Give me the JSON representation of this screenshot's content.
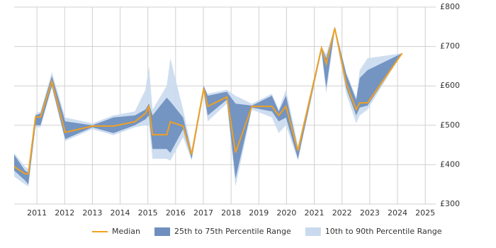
{
  "chart_data": {
    "type": "band-line",
    "x": [
      2010.18,
      2010.57,
      2010.69,
      2010.95,
      2011.13,
      2011.54,
      2012.02,
      2013.0,
      2013.76,
      2014.53,
      2014.91,
      2015.04,
      2015.17,
      2015.68,
      2015.81,
      2016.27,
      2016.58,
      2017.01,
      2017.16,
      2017.85,
      2018.16,
      2018.75,
      2019.47,
      2019.72,
      2019.98,
      2020.41,
      2021.26,
      2021.43,
      2021.74,
      2022.15,
      2022.51,
      2022.64,
      2022.92,
      2024.17
    ],
    "series": [
      {
        "name": "Median",
        "color": "#f0a020",
        "values": [
          395,
          377,
          377,
          521,
          521,
          611,
          482,
          498,
          498,
          509,
          530,
          548,
          476,
          476,
          509,
          498,
          426,
          593,
          548,
          572,
          431,
          548,
          548,
          525,
          548,
          435,
          696,
          656,
          746,
          606,
          540,
          557,
          557,
          683
        ]
      },
      {
        "name": "25th to 75th Percentile Range",
        "color": "#6f8fbf",
        "low": [
          385,
          360,
          350,
          500,
          500,
          600,
          465,
          495,
          480,
          500,
          515,
          525,
          440,
          440,
          430,
          490,
          415,
          585,
          525,
          565,
          365,
          545,
          535,
          510,
          520,
          415,
          690,
          595,
          745,
          595,
          525,
          545,
          550,
          683
        ],
        "high": [
          425,
          385,
          380,
          525,
          530,
          625,
          510,
          500,
          520,
          525,
          540,
          555,
          525,
          570,
          560,
          520,
          430,
          600,
          575,
          585,
          555,
          550,
          575,
          535,
          575,
          440,
          700,
          670,
          750,
          630,
          565,
          620,
          640,
          683
        ]
      },
      {
        "name": "10th to 90th Percentile Range",
        "color": "#c9daee",
        "low": [
          370,
          350,
          345,
          495,
          495,
          595,
          460,
          490,
          475,
          495,
          500,
          500,
          415,
          415,
          410,
          470,
          410,
          580,
          510,
          555,
          345,
          540,
          520,
          480,
          500,
          410,
          685,
          580,
          740,
          580,
          505,
          525,
          540,
          683
        ],
        "high": [
          430,
          395,
          390,
          530,
          535,
          635,
          520,
          505,
          525,
          535,
          590,
          650,
          540,
          600,
          670,
          540,
          440,
          600,
          580,
          590,
          575,
          555,
          580,
          540,
          590,
          450,
          700,
          680,
          750,
          635,
          570,
          640,
          670,
          683
        ]
      }
    ],
    "xlim": [
      2010.18,
      2025.38
    ],
    "xticks": [
      2011,
      2012,
      2013,
      2014,
      2015,
      2016,
      2017,
      2018,
      2019,
      2020,
      2021,
      2022,
      2023,
      2024,
      2025
    ],
    "ylim": [
      300,
      800
    ],
    "yticks": [
      {
        "value": 300,
        "label": "£300"
      },
      {
        "value": 400,
        "label": "£400"
      },
      {
        "value": 500,
        "label": "£500"
      },
      {
        "value": 600,
        "label": "£600"
      },
      {
        "value": 700,
        "label": "£700"
      },
      {
        "value": 800,
        "label": "£800"
      }
    ],
    "grid": true
  }
}
